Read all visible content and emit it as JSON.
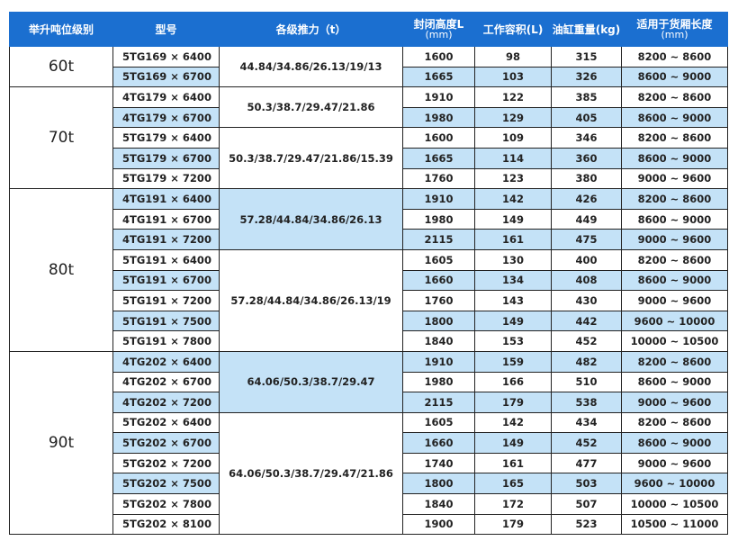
{
  "table": {
    "header": [
      {
        "text": "举升吨位级别"
      },
      {
        "text": "型号"
      },
      {
        "text": "各级推力（t）"
      },
      {
        "text": "封闭高度L",
        "sub": "(mm)"
      },
      {
        "text": "工作容积(L)"
      },
      {
        "text": "油缸重量(kg)"
      },
      {
        "text": "适用于货厢长度",
        "sub": "(mm)"
      }
    ],
    "groups": [
      {
        "tonnage": "60t",
        "blocks": [
          {
            "thrust": "44.84/34.86/26.13/19/13",
            "shaded": false,
            "rows": [
              {
                "model": "5TG169 × 6400",
                "height": 1600,
                "volume": 98,
                "weight": 315,
                "length": "8200 ~ 8600",
                "shaded": false
              },
              {
                "model": "5TG169 × 6700",
                "height": 1665,
                "volume": 103,
                "weight": 326,
                "length": "8600 ~ 9000",
                "shaded": true
              }
            ]
          }
        ]
      },
      {
        "tonnage": "70t",
        "blocks": [
          {
            "thrust": "50.3/38.7/29.47/21.86",
            "shaded": false,
            "rows": [
              {
                "model": "4TG179 × 6400",
                "height": 1910,
                "volume": 122,
                "weight": 385,
                "length": "8200 ~ 8600",
                "shaded": false
              },
              {
                "model": "4TG179 × 6700",
                "height": 1980,
                "volume": 129,
                "weight": 405,
                "length": "8600 ~ 9000",
                "shaded": true
              }
            ]
          },
          {
            "thrust": "50.3/38.7/29.47/21.86/15.39",
            "shaded": false,
            "rows": [
              {
                "model": "5TG179 × 6400",
                "height": 1600,
                "volume": 109,
                "weight": 346,
                "length": "8200 ~ 8600",
                "shaded": false
              },
              {
                "model": "5TG179 × 6700",
                "height": 1665,
                "volume": 114,
                "weight": 360,
                "length": "8600 ~ 9000",
                "shaded": true
              },
              {
                "model": "5TG179 × 7200",
                "height": 1760,
                "volume": 123,
                "weight": 380,
                "length": "9000 ~ 9600",
                "shaded": false
              }
            ]
          }
        ]
      },
      {
        "tonnage": "80t",
        "blocks": [
          {
            "thrust": "57.28/44.84/34.86/26.13",
            "shaded": true,
            "rows": [
              {
                "model": "4TG191 × 6400",
                "height": 1910,
                "volume": 142,
                "weight": 426,
                "length": "8200 ~ 8600",
                "shaded": true
              },
              {
                "model": "4TG191 × 6700",
                "height": 1980,
                "volume": 149,
                "weight": 449,
                "length": "8600 ~ 9000",
                "shaded": false
              },
              {
                "model": "4TG191 × 7200",
                "height": 2115,
                "volume": 161,
                "weight": 475,
                "length": "9000 ~ 9600",
                "shaded": true
              }
            ]
          },
          {
            "thrust": "57.28/44.84/34.86/26.13/19",
            "shaded": false,
            "rows": [
              {
                "model": "5TG191 × 6400",
                "height": 1605,
                "volume": 130,
                "weight": 400,
                "length": "8200 ~ 8600",
                "shaded": false
              },
              {
                "model": "5TG191 × 6700",
                "height": 1660,
                "volume": 134,
                "weight": 408,
                "length": "8600 ~ 9000",
                "shaded": true
              },
              {
                "model": "5TG191 × 7200",
                "height": 1760,
                "volume": 143,
                "weight": 430,
                "length": "9000 ~ 9600",
                "shaded": false
              },
              {
                "model": "5TG191 × 7500",
                "height": 1800,
                "volume": 149,
                "weight": 442,
                "length": "9600 ~ 10000",
                "shaded": true
              },
              {
                "model": "5TG191 × 7800",
                "height": 1840,
                "volume": 153,
                "weight": 452,
                "length": "10000 ~ 10500",
                "shaded": false
              }
            ]
          }
        ]
      },
      {
        "tonnage": "90t",
        "blocks": [
          {
            "thrust": "64.06/50.3/38.7/29.47",
            "shaded": true,
            "rows": [
              {
                "model": "4TG202 × 6400",
                "height": 1910,
                "volume": 159,
                "weight": 482,
                "length": "8200 ~ 8600",
                "shaded": true
              },
              {
                "model": "4TG202 × 6700",
                "height": 1980,
                "volume": 166,
                "weight": 510,
                "length": "8600 ~ 9000",
                "shaded": false
              },
              {
                "model": "4TG202 × 7200",
                "height": 2115,
                "volume": 179,
                "weight": 538,
                "length": "9000 ~ 9600",
                "shaded": true
              }
            ]
          },
          {
            "thrust": "64.06/50.3/38.7/29.47/21.86",
            "shaded": false,
            "rows": [
              {
                "model": "5TG202 × 6400",
                "height": 1605,
                "volume": 142,
                "weight": 434,
                "length": "8200 ~ 8600",
                "shaded": false
              },
              {
                "model": "5TG202 × 6700",
                "height": 1660,
                "volume": 149,
                "weight": 452,
                "length": "8600 ~ 9000",
                "shaded": true
              },
              {
                "model": "5TG202 × 7200",
                "height": 1740,
                "volume": 161,
                "weight": 477,
                "length": "9000 ~ 9600",
                "shaded": false
              },
              {
                "model": "5TG202 × 7500",
                "height": 1800,
                "volume": 165,
                "weight": 503,
                "length": "9600 ~ 10000",
                "shaded": true
              },
              {
                "model": "5TG202 × 7800",
                "height": 1840,
                "volume": 172,
                "weight": 507,
                "length": "10000 ~ 10500",
                "shaded": false
              },
              {
                "model": "5TG202 × 8100",
                "height": 1900,
                "volume": 179,
                "weight": 523,
                "length": "10500 ~ 11000",
                "shaded": false
              }
            ]
          }
        ]
      }
    ]
  }
}
